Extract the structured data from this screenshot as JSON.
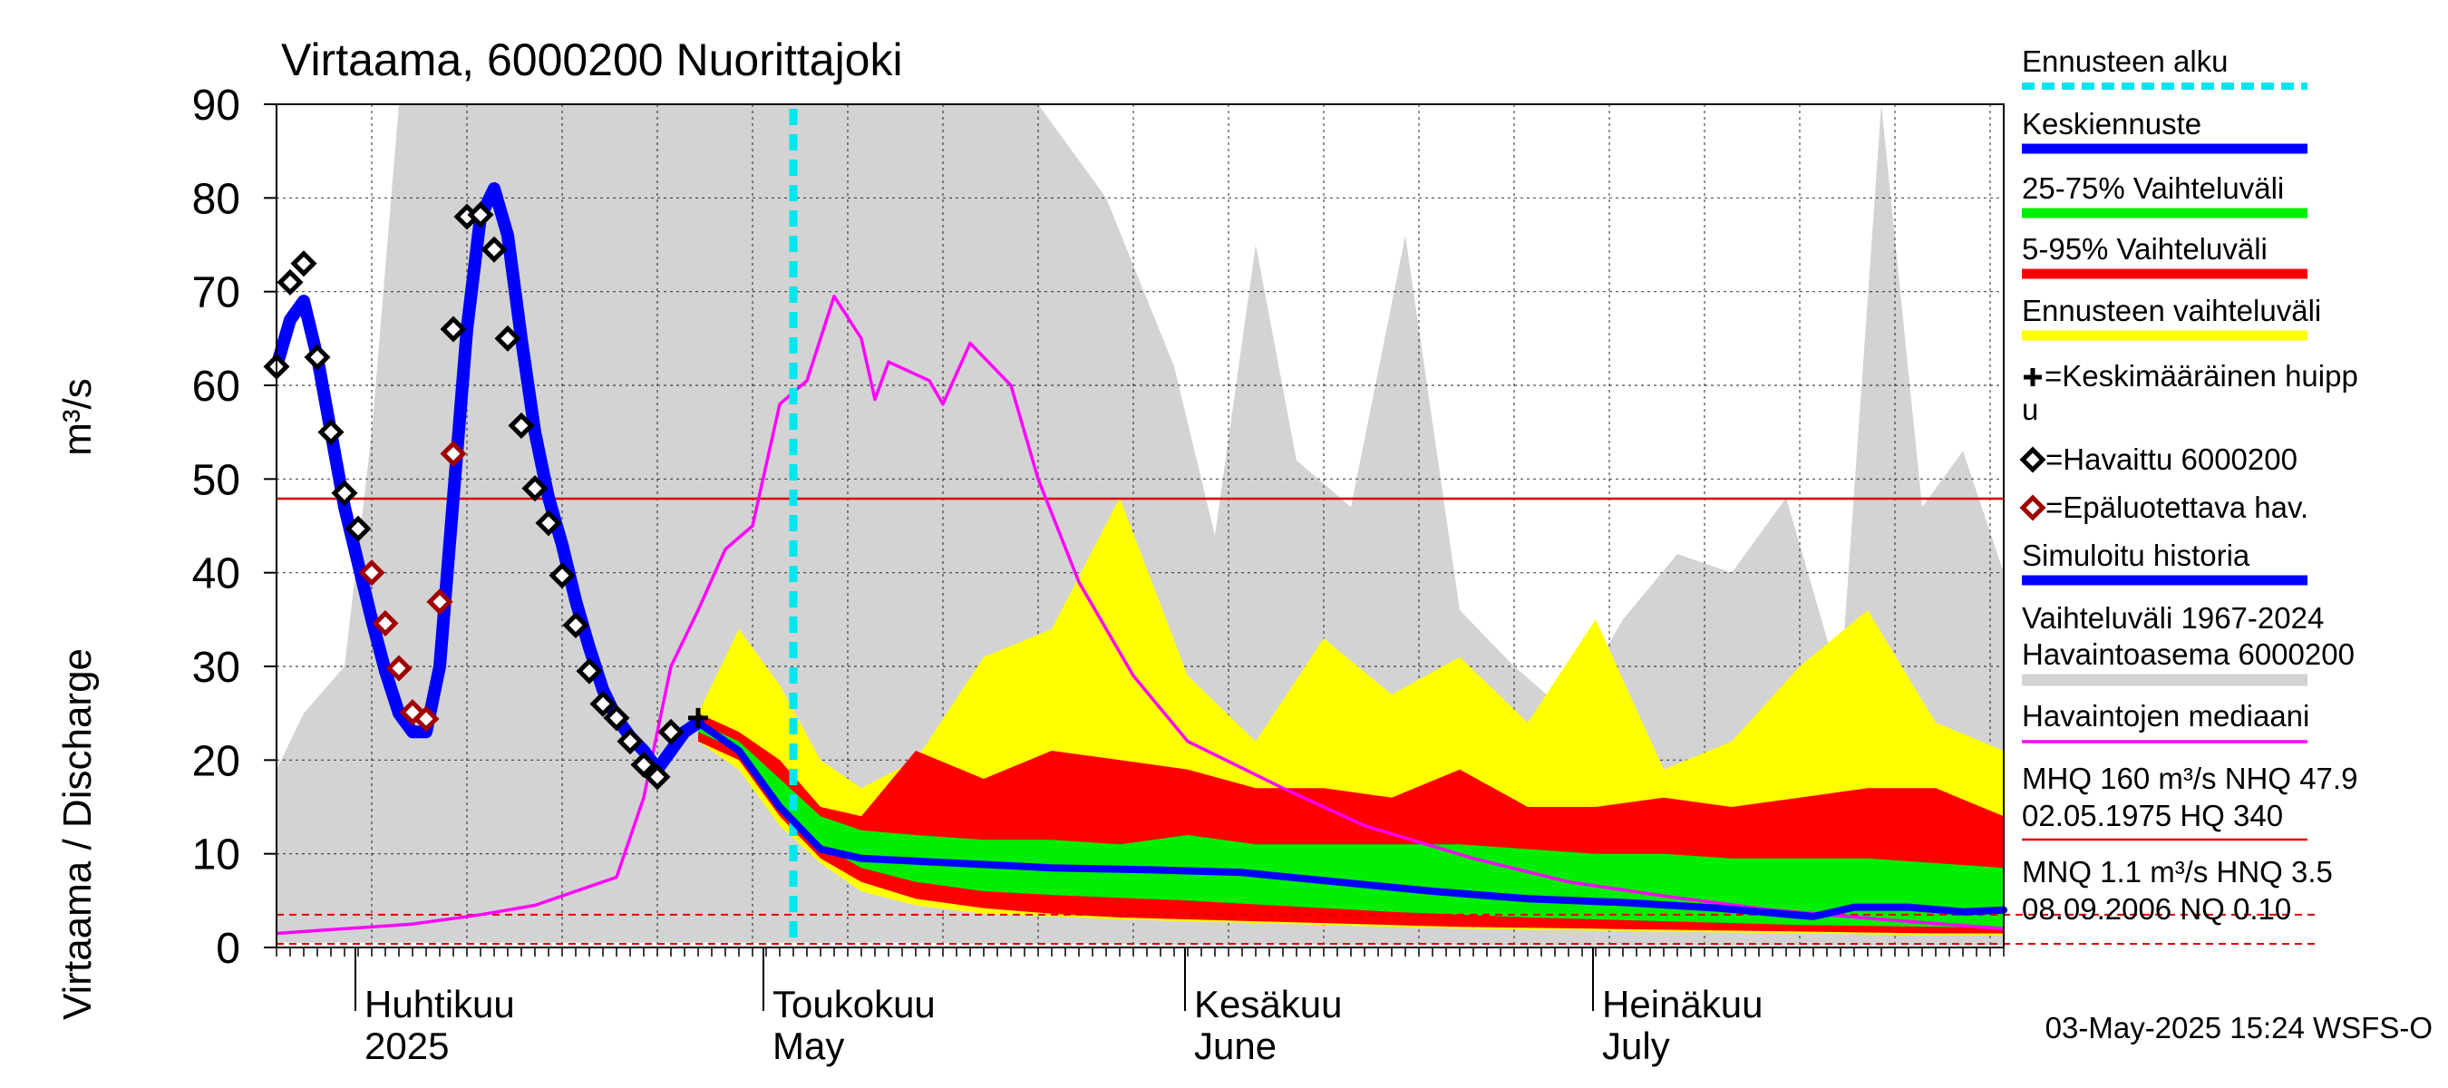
{
  "chart_data": {
    "type": "line",
    "title": "Virtaama, 6000200 Nuorittajoki",
    "ylabel": "Virtaama / Discharge",
    "yunit": "m³/s",
    "ylim": [
      0,
      90
    ],
    "yticks": [
      0,
      10,
      20,
      30,
      40,
      50,
      60,
      70,
      80,
      90
    ],
    "xlim": [
      "2025-03-26",
      "2025-07-31"
    ],
    "month_labels": [
      {
        "top": "Huhtikuu",
        "bottom": "2025",
        "date": "2025-04-01"
      },
      {
        "top": "Toukokuu",
        "bottom": "May",
        "date": "2025-05-01"
      },
      {
        "top": "Kesäkuu",
        "bottom": "June",
        "date": "2025-06-01"
      },
      {
        "top": "Heinäkuu",
        "bottom": "July",
        "date": "2025-07-01"
      }
    ],
    "forecast_start": "2025-05-03",
    "reference_lines": {
      "NHQ": 47.9,
      "HNQ": 3.5,
      "NQ": 0.1
    },
    "observed": [
      [
        "2025-03-26",
        62
      ],
      [
        "2025-03-27",
        71
      ],
      [
        "2025-03-28",
        73
      ],
      [
        "2025-03-29",
        63
      ],
      [
        "2025-03-30",
        55
      ],
      [
        "2025-03-31",
        48.5
      ],
      [
        "2025-04-01",
        44.7
      ],
      [
        "2025-04-08",
        66
      ],
      [
        "2025-04-09",
        78
      ],
      [
        "2025-04-10",
        78.2
      ],
      [
        "2025-04-11",
        74.5
      ],
      [
        "2025-04-12",
        65
      ],
      [
        "2025-04-13",
        55.7
      ],
      [
        "2025-04-14",
        49
      ],
      [
        "2025-04-15",
        45.3
      ],
      [
        "2025-04-16",
        39.7
      ],
      [
        "2025-04-17",
        34.4
      ],
      [
        "2025-04-18",
        29.5
      ],
      [
        "2025-04-19",
        26
      ],
      [
        "2025-04-20",
        24.5
      ],
      [
        "2025-04-21",
        22
      ],
      [
        "2025-04-22",
        19.5
      ],
      [
        "2025-04-23",
        18.2
      ],
      [
        "2025-04-24",
        23
      ]
    ],
    "unreliable": [
      [
        "2025-04-02",
        40
      ],
      [
        "2025-04-03",
        34.6
      ],
      [
        "2025-04-04",
        29.8
      ],
      [
        "2025-04-05",
        25.1
      ],
      [
        "2025-04-06",
        24.4
      ],
      [
        "2025-04-07",
        36.9
      ],
      [
        "2025-04-08",
        52.7
      ]
    ],
    "mean_peak": [
      [
        "2025-04-26",
        24.5
      ]
    ],
    "simulated": [
      [
        "2025-03-26",
        62
      ],
      [
        "2025-03-27",
        67
      ],
      [
        "2025-03-28",
        69
      ],
      [
        "2025-03-29",
        63
      ],
      [
        "2025-03-30",
        55
      ],
      [
        "2025-03-31",
        47
      ],
      [
        "2025-04-01",
        41
      ],
      [
        "2025-04-02",
        35
      ],
      [
        "2025-04-03",
        29.5
      ],
      [
        "2025-04-04",
        25
      ],
      [
        "2025-04-05",
        23
      ],
      [
        "2025-04-06",
        23
      ],
      [
        "2025-04-07",
        30
      ],
      [
        "2025-04-08",
        48
      ],
      [
        "2025-04-09",
        66
      ],
      [
        "2025-04-10",
        78
      ],
      [
        "2025-04-11",
        81
      ],
      [
        "2025-04-12",
        76
      ],
      [
        "2025-04-13",
        65
      ],
      [
        "2025-04-14",
        55
      ],
      [
        "2025-04-15",
        48
      ],
      [
        "2025-04-16",
        43
      ],
      [
        "2025-04-17",
        37
      ],
      [
        "2025-04-18",
        32
      ],
      [
        "2025-04-19",
        27.5
      ],
      [
        "2025-04-20",
        24.5
      ],
      [
        "2025-04-21",
        22.5
      ],
      [
        "2025-04-22",
        21
      ],
      [
        "2025-04-23",
        19
      ],
      [
        "2025-04-24",
        21
      ],
      [
        "2025-04-25",
        23
      ],
      [
        "2025-04-26",
        24
      ]
    ],
    "forecast_median": [
      [
        "2025-04-26",
        24
      ],
      [
        "2025-04-29",
        21
      ],
      [
        "2025-05-02",
        15
      ],
      [
        "2025-05-05",
        10.5
      ],
      [
        "2025-05-08",
        9.5
      ],
      [
        "2025-05-15",
        9
      ],
      [
        "2025-05-22",
        8.5
      ],
      [
        "2025-05-29",
        8.3
      ],
      [
        "2025-06-05",
        8
      ],
      [
        "2025-06-12",
        7
      ],
      [
        "2025-06-19",
        6
      ],
      [
        "2025-06-26",
        5.2
      ],
      [
        "2025-07-03",
        4.8
      ],
      [
        "2025-07-10",
        4.2
      ],
      [
        "2025-07-17",
        3.3
      ],
      [
        "2025-07-20",
        4.3
      ],
      [
        "2025-07-24",
        4.3
      ],
      [
        "2025-07-28",
        3.8
      ],
      [
        "2025-07-31",
        4
      ]
    ],
    "band_x": [
      "2025-04-26",
      "2025-04-29",
      "2025-05-02",
      "2025-05-05",
      "2025-05-08",
      "2025-05-12",
      "2025-05-17",
      "2025-05-22",
      "2025-05-27",
      "2025-06-01",
      "2025-06-06",
      "2025-06-11",
      "2025-06-16",
      "2025-06-21",
      "2025-06-26",
      "2025-07-01",
      "2025-07-06",
      "2025-07-11",
      "2025-07-16",
      "2025-07-21",
      "2025-07-26",
      "2025-07-31"
    ],
    "forecast_range": {
      "upper": [
        25,
        34,
        28,
        20,
        17,
        20,
        31,
        34,
        48,
        29,
        22,
        33,
        27,
        31,
        24,
        35,
        19,
        22,
        30,
        36,
        24,
        21
      ],
      "lower": [
        22,
        19,
        13,
        9,
        6,
        4.5,
        3.6,
        3.3,
        3,
        2.8,
        2.6,
        2.4,
        2.2,
        2,
        1.9,
        1.8,
        1.7,
        1.6,
        1.5,
        1.4,
        1.3,
        1.3
      ]
    },
    "range_5_95": {
      "upper": [
        25,
        23,
        20,
        15,
        14,
        21,
        18,
        21,
        20,
        19,
        17,
        17,
        16,
        19,
        15,
        15,
        16,
        15,
        16,
        17,
        17,
        14
      ],
      "lower": [
        22,
        20,
        14,
        9.5,
        7,
        5.2,
        4.2,
        3.6,
        3.2,
        3,
        2.8,
        2.6,
        2.4,
        2.2,
        2.1,
        2,
        1.9,
        1.8,
        1.7,
        1.6,
        1.5,
        1.5
      ]
    },
    "range_25_75": {
      "upper": [
        24,
        22,
        18,
        14,
        12.5,
        12,
        11.5,
        11.5,
        11,
        12,
        11,
        11,
        11,
        11,
        10.5,
        10,
        10,
        9.5,
        9.5,
        9.5,
        9,
        8.5
      ],
      "lower": [
        23,
        21,
        15.5,
        11,
        8.5,
        7,
        6,
        5.6,
        5.3,
        5,
        4.6,
        4.2,
        3.8,
        3.5,
        3.2,
        3,
        2.8,
        2.6,
        2.4,
        2.3,
        2.2,
        2.1
      ]
    },
    "observed_median": [
      [
        "2025-03-26",
        1.5
      ],
      [
        "2025-03-31",
        2
      ],
      [
        "2025-04-05",
        2.5
      ],
      [
        "2025-04-10",
        3.5
      ],
      [
        "2025-04-14",
        4.5
      ],
      [
        "2025-04-18",
        6.5
      ],
      [
        "2025-04-20",
        7.5
      ],
      [
        "2025-04-22",
        16
      ],
      [
        "2025-04-24",
        30
      ],
      [
        "2025-04-26",
        36
      ],
      [
        "2025-04-28",
        42.5
      ],
      [
        "2025-04-30",
        45
      ],
      [
        "2025-05-02",
        58
      ],
      [
        "2025-05-04",
        60.5
      ],
      [
        "2025-05-06",
        69.5
      ],
      [
        "2025-05-08",
        65
      ],
      [
        "2025-05-09",
        58.5
      ],
      [
        "2025-05-10",
        62.5
      ],
      [
        "2025-05-13",
        60.5
      ],
      [
        "2025-05-14",
        58
      ],
      [
        "2025-05-16",
        64.5
      ],
      [
        "2025-05-19",
        60
      ],
      [
        "2025-05-21",
        50
      ],
      [
        "2025-05-24",
        39
      ],
      [
        "2025-05-28",
        29
      ],
      [
        "2025-06-01",
        22
      ],
      [
        "2025-06-08",
        17
      ],
      [
        "2025-06-14",
        13
      ],
      [
        "2025-06-22",
        9.5
      ],
      [
        "2025-06-29",
        7
      ],
      [
        "2025-07-06",
        5.5
      ],
      [
        "2025-07-14",
        4
      ],
      [
        "2025-07-22",
        3
      ],
      [
        "2025-07-31",
        2
      ]
    ],
    "history_range": {
      "x": [
        "2025-03-26",
        "2025-03-28",
        "2025-03-31",
        "2025-04-02",
        "2025-04-04",
        "2025-04-08",
        "2025-04-12",
        "2025-04-16",
        "2025-04-21",
        "2025-04-26",
        "2025-04-30",
        "2025-05-04",
        "2025-05-08",
        "2025-05-12",
        "2025-05-16",
        "2025-05-21",
        "2025-05-26",
        "2025-05-31",
        "2025-06-03",
        "2025-06-06",
        "2025-06-09",
        "2025-06-13",
        "2025-06-17",
        "2025-06-21",
        "2025-06-25",
        "2025-06-29",
        "2025-07-03",
        "2025-07-07",
        "2025-07-11",
        "2025-07-15",
        "2025-07-19",
        "2025-07-22",
        "2025-07-25",
        "2025-07-28",
        "2025-07-31"
      ],
      "upper": [
        19,
        25,
        30,
        55,
        90,
        90,
        90,
        90,
        90,
        90,
        90,
        90,
        90,
        90,
        90,
        90,
        80,
        62,
        44,
        75,
        52,
        47,
        76,
        36,
        30,
        25,
        35,
        42,
        40,
        48,
        28,
        90,
        47,
        53,
        40
      ],
      "lower": [
        0.5,
        0.5,
        0.5,
        0.5,
        0.5,
        0.5,
        0.5,
        0.5,
        0.5,
        0.5,
        0.5,
        0.5,
        0.5,
        0.5,
        0.4,
        0.4,
        0.4,
        0.3,
        0.3,
        0.3,
        0.3,
        0.3,
        0.3,
        0.3,
        0.2,
        0.2,
        0.2,
        0.2,
        0.2,
        0.2,
        0.2,
        0.2,
        0.2,
        0.2,
        0.2
      ]
    }
  },
  "legend": {
    "items": [
      {
        "label": "Ennusteen alku",
        "color": "#00e5ee",
        "style": "dashed"
      },
      {
        "label": "Keskiennuste",
        "color": "#0000ff",
        "style": "thick"
      },
      {
        "label": "25-75% Vaihteluväli",
        "color": "#00ee00",
        "style": "thick"
      },
      {
        "label": "5-95% Vaihteluväli",
        "color": "#ff0000",
        "style": "thick"
      },
      {
        "label": "Ennusteen vaihteluväli",
        "color": "#ffff00",
        "style": "thick"
      }
    ],
    "mean_peak_line1": "=Keskimääräinen huipp",
    "mean_peak_line2": "u",
    "observed_label": "=Havaittu 6000200",
    "unreliable_label": "=Epäluotettava hav.",
    "simulated_label": "Simuloitu historia",
    "history_line1": "Vaihteluväli 1967-2024",
    "history_line2": " Havaintoasema 6000200",
    "median_label": "Havaintojen mediaani",
    "stats1_line1": "MHQ  160 m³/s NHQ 47.9",
    "stats1_line2": "02.05.1975 HQ  340",
    "stats2_line1": "MNQ  1.1 m³/s HNQ  3.5",
    "stats2_line2": "08.09.2006 NQ 0.10"
  },
  "footer": "03-May-2025 15:24 WSFS-O",
  "colors": {
    "history": "#d3d3d3",
    "forecast_range": "#ffff00",
    "range_5_95": "#ff0000",
    "range_25_75": "#00ee00",
    "median_forecast": "#0000ff",
    "observed_median": "#ff00ff",
    "reference": "#e00000",
    "forecast_start": "#00e5ee",
    "unreliable": "#a00000"
  }
}
